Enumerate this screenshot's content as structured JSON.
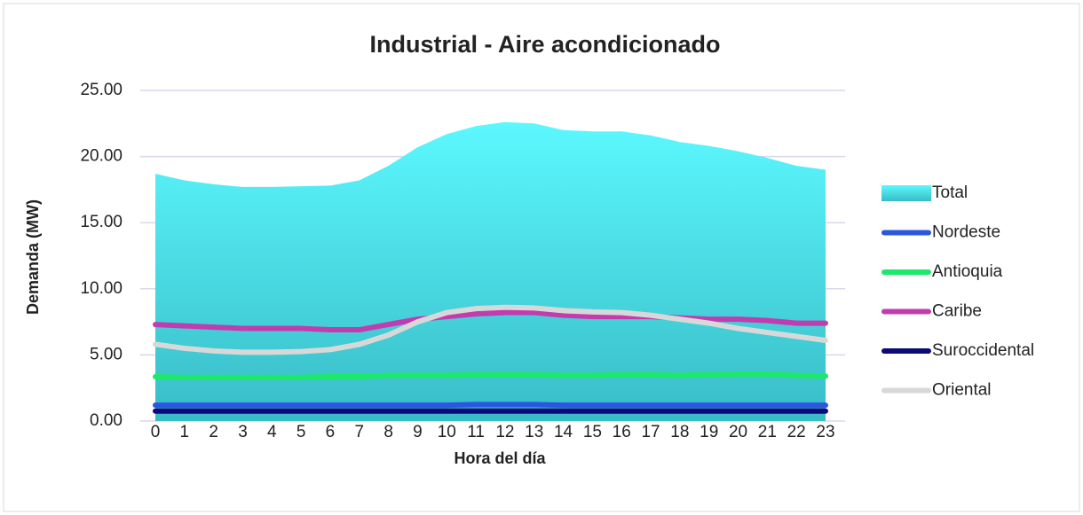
{
  "chart_data": {
    "type": "line",
    "title": "Industrial - Aire acondicionado",
    "x_label": "Hora del día",
    "y_label": "Demanda (MW)",
    "categories": [
      "0",
      "1",
      "2",
      "3",
      "4",
      "5",
      "6",
      "7",
      "8",
      "9",
      "10",
      "11",
      "12",
      "13",
      "14",
      "15",
      "16",
      "17",
      "18",
      "19",
      "20",
      "21",
      "22",
      "23"
    ],
    "series": [
      {
        "name": "Total",
        "type": "area",
        "color": "#4fe6f0",
        "values": [
          18.7,
          18.2,
          17.9,
          17.7,
          17.7,
          17.75,
          17.8,
          18.2,
          19.3,
          20.7,
          21.7,
          22.3,
          22.6,
          22.5,
          22.0,
          21.9,
          21.9,
          21.6,
          21.1,
          20.8,
          20.4,
          19.9,
          19.3,
          19.0
        ]
      },
      {
        "name": "Nordeste",
        "type": "line",
        "color": "#2b57e0",
        "values": [
          1.2,
          1.2,
          1.2,
          1.2,
          1.2,
          1.2,
          1.2,
          1.2,
          1.2,
          1.2,
          1.2,
          1.25,
          1.25,
          1.25,
          1.2,
          1.2,
          1.2,
          1.2,
          1.2,
          1.2,
          1.2,
          1.2,
          1.2,
          1.2
        ]
      },
      {
        "name": "Antioquia",
        "type": "line",
        "color": "#1de86a",
        "values": [
          3.35,
          3.3,
          3.3,
          3.3,
          3.3,
          3.3,
          3.35,
          3.35,
          3.45,
          3.45,
          3.45,
          3.5,
          3.5,
          3.5,
          3.45,
          3.45,
          3.5,
          3.5,
          3.45,
          3.5,
          3.55,
          3.55,
          3.45,
          3.4
        ]
      },
      {
        "name": "Caribe",
        "type": "line",
        "color": "#c23cb0",
        "values": [
          7.3,
          7.2,
          7.1,
          7.0,
          7.0,
          7.0,
          6.9,
          6.9,
          7.3,
          7.7,
          7.9,
          8.1,
          8.2,
          8.2,
          8.0,
          7.9,
          7.9,
          7.9,
          7.8,
          7.7,
          7.7,
          7.6,
          7.4,
          7.4
        ]
      },
      {
        "name": "Suroccidental",
        "type": "line",
        "color": "#0a0a7a",
        "values": [
          0.75,
          0.75,
          0.75,
          0.75,
          0.75,
          0.75,
          0.75,
          0.75,
          0.75,
          0.75,
          0.75,
          0.75,
          0.75,
          0.75,
          0.75,
          0.75,
          0.75,
          0.75,
          0.75,
          0.75,
          0.75,
          0.75,
          0.75,
          0.75
        ]
      },
      {
        "name": "Oriental",
        "type": "line",
        "color": "#d8d8d8",
        "values": [
          5.8,
          5.5,
          5.3,
          5.2,
          5.2,
          5.25,
          5.4,
          5.8,
          6.5,
          7.5,
          8.2,
          8.5,
          8.6,
          8.55,
          8.35,
          8.25,
          8.2,
          8.0,
          7.7,
          7.4,
          7.0,
          6.7,
          6.4,
          6.1
        ]
      }
    ],
    "ylim": [
      0,
      25
    ],
    "yticks": [
      {
        "value": 0,
        "label": "0.00"
      },
      {
        "value": 5,
        "label": "5.00"
      },
      {
        "value": 10,
        "label": "10.00"
      },
      {
        "value": 15,
        "label": "15.00"
      },
      {
        "value": 20,
        "label": "20.00"
      },
      {
        "value": 25,
        "label": "25.00"
      }
    ],
    "grid": true,
    "legend": "right"
  }
}
